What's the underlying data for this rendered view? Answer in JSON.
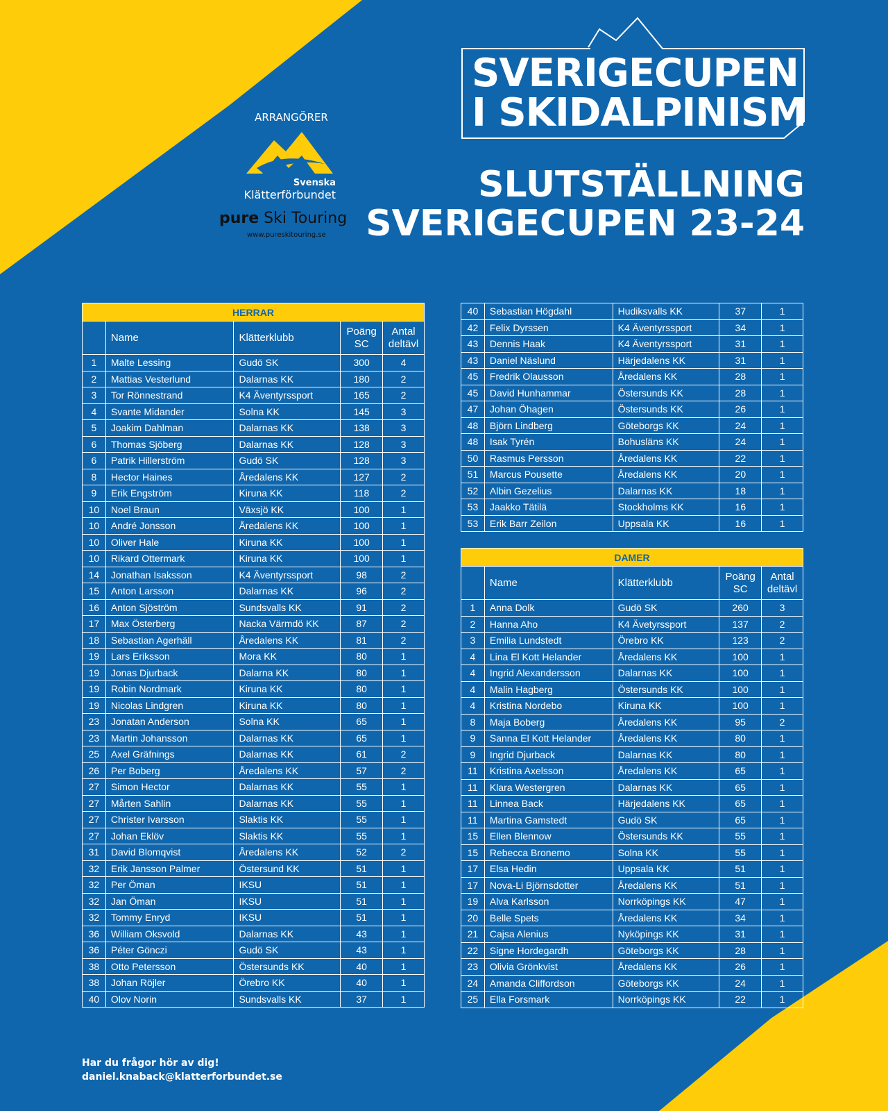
{
  "colors": {
    "blue": "#0f66ad",
    "yellow": "#ffcc0a"
  },
  "logo": {
    "line1": "SVERIGECUPEN",
    "line2": "I SKIDALPINISM"
  },
  "arrangorer": "ARRANGÖRER",
  "skf": {
    "line1": "Svenska",
    "line2": "Klätterförbundet"
  },
  "pure": {
    "bold": "pure",
    "rest": " Ski Touring",
    "url": "www.pureskitouring.se"
  },
  "title": {
    "line1": "SLUTSTÄLLNING",
    "line2": "SVERIGECUPEN 23-24"
  },
  "columns": {
    "name": "Name",
    "club": "Klätterklubb",
    "points": "Poäng SC",
    "count": "Antal deltävl"
  },
  "herrar": {
    "title": "HERRAR",
    "rows": [
      [
        "1",
        "Malte Lessing",
        "Gudö SK",
        "300",
        "4"
      ],
      [
        "2",
        "Mattias Vesterlund",
        "Dalarnas KK",
        "180",
        "2"
      ],
      [
        "3",
        "Tor Rönnestrand",
        "K4 Äventyrssport",
        "165",
        "2"
      ],
      [
        "4",
        "Svante Midander",
        "Solna KK",
        "145",
        "3"
      ],
      [
        "5",
        "Joakim Dahlman",
        "Dalarnas KK",
        "138",
        "3"
      ],
      [
        "6",
        "Thomas Sjöberg",
        "Dalarnas KK",
        "128",
        "3"
      ],
      [
        "6",
        "Patrik Hillerström",
        "Gudö SK",
        "128",
        "3"
      ],
      [
        "8",
        "Hector Haines",
        "Åredalens KK",
        "127",
        "2"
      ],
      [
        "9",
        "Erik Engström",
        "Kiruna KK",
        "118",
        "2"
      ],
      [
        "10",
        "Noel Braun",
        "Växsjö KK",
        "100",
        "1"
      ],
      [
        "10",
        "André Jonsson",
        "Åredalens KK",
        "100",
        "1"
      ],
      [
        "10",
        "Oliver Hale",
        "Kiruna KK",
        "100",
        "1"
      ],
      [
        "10",
        "Rikard Ottermark",
        "Kiruna KK",
        "100",
        "1"
      ],
      [
        "14",
        "Jonathan Isaksson",
        "K4 Äventyrssport",
        "98",
        "2"
      ],
      [
        "15",
        "Anton Larsson",
        "Dalarnas KK",
        "96",
        "2"
      ],
      [
        "16",
        "Anton Sjöström",
        "Sundsvalls KK",
        "91",
        "2"
      ],
      [
        "17",
        "Max Österberg",
        "Nacka Värmdö KK",
        "87",
        "2"
      ],
      [
        "18",
        "Sebastian Agerhäll",
        "Åredalens KK",
        "81",
        "2"
      ],
      [
        "19",
        "Lars Eriksson",
        "Mora KK",
        "80",
        "1"
      ],
      [
        "19",
        "Jonas Djurback",
        "Dalarna KK",
        "80",
        "1"
      ],
      [
        "19",
        "Robin Nordmark",
        "Kiruna KK",
        "80",
        "1"
      ],
      [
        "19",
        "Nicolas Lindgren",
        "Kiruna KK",
        "80",
        "1"
      ],
      [
        "23",
        "Jonatan Anderson",
        "Solna KK",
        "65",
        "1"
      ],
      [
        "23",
        "Martin Johansson",
        "Dalarnas KK",
        "65",
        "1"
      ],
      [
        "25",
        "Axel Gräfnings",
        "Dalarnas KK",
        "61",
        "2"
      ],
      [
        "26",
        "Per Boberg",
        "Åredalens KK",
        "57",
        "2"
      ],
      [
        "27",
        "Simon Hector",
        "Dalarnas KK",
        "55",
        "1"
      ],
      [
        "27",
        "Mårten Sahlin",
        "Dalarnas KK",
        "55",
        "1"
      ],
      [
        "27",
        "Christer Ivarsson",
        "Slaktis KK",
        "55",
        "1"
      ],
      [
        "27",
        "Johan Eklöv",
        "Slaktis KK",
        "55",
        "1"
      ],
      [
        "31",
        "David Blomqvist",
        "Åredalens KK",
        "52",
        "2"
      ],
      [
        "32",
        "Erik Jansson Palmer",
        "Östersund KK",
        "51",
        "1"
      ],
      [
        "32",
        "Per Öman",
        "IKSU",
        "51",
        "1"
      ],
      [
        "32",
        "Jan Öman",
        "IKSU",
        "51",
        "1"
      ],
      [
        "32",
        "Tommy Enryd",
        "IKSU",
        "51",
        "1"
      ],
      [
        "36",
        "William Oksvold",
        "Dalarnas KK",
        "43",
        "1"
      ],
      [
        "36",
        "Péter Gönczi",
        "Gudö SK",
        "43",
        "1"
      ],
      [
        "38",
        "Otto Petersson",
        "Östersunds KK",
        "40",
        "1"
      ],
      [
        "38",
        "Johan Röjler",
        "Örebro KK",
        "40",
        "1"
      ],
      [
        "40",
        "Olov Norin",
        "Sundsvalls KK",
        "37",
        "1"
      ]
    ],
    "rows_cont": [
      [
        "40",
        "Sebastian Högdahl",
        "Hudiksvalls KK",
        "37",
        "1"
      ],
      [
        "42",
        "Felix Dyrssen",
        "K4 Äventyrssport",
        "34",
        "1"
      ],
      [
        "43",
        "Dennis Haak",
        "K4 Äventyrssport",
        "31",
        "1"
      ],
      [
        "43",
        "Daniel Näslund",
        "Härjedalens KK",
        "31",
        "1"
      ],
      [
        "45",
        "Fredrik Olausson",
        "Åredalens KK",
        "28",
        "1"
      ],
      [
        "45",
        "David Hunhammar",
        "Östersunds KK",
        "28",
        "1"
      ],
      [
        "47",
        "Johan Öhagen",
        "Östersunds KK",
        "26",
        "1"
      ],
      [
        "48",
        "Björn Lindberg",
        "Göteborgs KK",
        "24",
        "1"
      ],
      [
        "48",
        "Isak Tyrén",
        "Bohusläns KK",
        "24",
        "1"
      ],
      [
        "50",
        "Rasmus Persson",
        "Åredalens KK",
        "22",
        "1"
      ],
      [
        "51",
        "Marcus Pousette",
        "Åredalens KK",
        "20",
        "1"
      ],
      [
        "52",
        "Albin Gezelius",
        "Dalarnas KK",
        "18",
        "1"
      ],
      [
        "53",
        "Jaakko Tätilä",
        "Stockholms KK",
        "16",
        "1"
      ],
      [
        "53",
        "Erik Barr Zeilon",
        "Uppsala KK",
        "16",
        "1"
      ]
    ]
  },
  "damer": {
    "title": "DAMER",
    "rows": [
      [
        "1",
        "Anna Dolk",
        "Gudö SK",
        "260",
        "3"
      ],
      [
        "2",
        "Hanna Aho",
        "K4 Ävetyrssport",
        "137",
        "2"
      ],
      [
        "3",
        "Emilia Lundstedt",
        "Örebro KK",
        "123",
        "2"
      ],
      [
        "4",
        "Lina El Kott Helander",
        "Åredalens KK",
        "100",
        "1"
      ],
      [
        "4",
        "Ingrid  Alexandersson",
        "Dalarnas KK",
        "100",
        "1"
      ],
      [
        "4",
        "Malin Hagberg",
        "Östersunds KK",
        "100",
        "1"
      ],
      [
        "4",
        "Kristina Nordebo",
        "Kiruna KK",
        "100",
        "1"
      ],
      [
        "8",
        "Maja Boberg",
        "Åredalens KK",
        "95",
        "2"
      ],
      [
        "9",
        "Sanna El Kott Helander",
        "Åredalens KK",
        "80",
        "1"
      ],
      [
        "9",
        "Ingrid Djurback",
        "Dalarnas KK",
        "80",
        "1"
      ],
      [
        "11",
        "Kristina Axelsson",
        "Åredalens KK",
        "65",
        "1"
      ],
      [
        "11",
        "Klara Westergren",
        "Dalarnas KK",
        "65",
        "1"
      ],
      [
        "11",
        "Linnea Back",
        "Härjedalens KK",
        "65",
        "1"
      ],
      [
        "11",
        "Martina Gamstedt",
        "Gudö SK",
        "65",
        "1"
      ],
      [
        "15",
        "Ellen Blennow",
        "Östersunds KK",
        "55",
        "1"
      ],
      [
        "15",
        "Rebecca Bronemo",
        "Solna KK",
        "55",
        "1"
      ],
      [
        "17",
        "Elsa Hedin",
        "Uppsala KK",
        "51",
        "1"
      ],
      [
        "17",
        "Nova-Li Björnsdotter",
        "Åredalens KK",
        "51",
        "1"
      ],
      [
        "19",
        "Alva Karlsson",
        "Norrköpings KK",
        "47",
        "1"
      ],
      [
        "20",
        "Belle Spets",
        "Åredalens KK",
        "34",
        "1"
      ],
      [
        "21",
        "Cajsa Alenius",
        "Nyköpings KK",
        "31",
        "1"
      ],
      [
        "22",
        "Signe Hordegardh",
        "Göteborgs KK",
        "28",
        "1"
      ],
      [
        "23",
        "Olivia Grönkvist",
        "Åredalens KK",
        "26",
        "1"
      ],
      [
        "24",
        "Amanda Cliffordson",
        "Göteborgs KK",
        "24",
        "1"
      ],
      [
        "25",
        "Ella Forsmark",
        "Norrköpings KK",
        "22",
        "1"
      ]
    ]
  },
  "footer": {
    "line1": "Har du frågor hör av dig!",
    "line2": "daniel.knaback@klatterforbundet.se"
  }
}
